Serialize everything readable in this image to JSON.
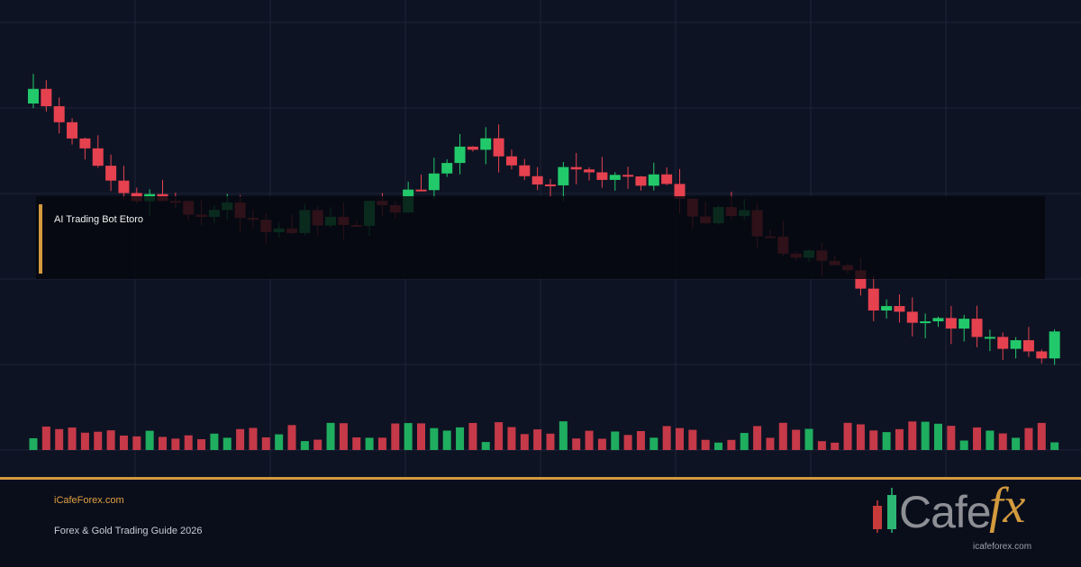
{
  "banner": {
    "label": "AI Trading Bot Etoro"
  },
  "footer": {
    "site": "iCafeForex.com",
    "subtitle": "Forex & Gold Trading Guide 2026"
  },
  "logo": {
    "word": "Cafe",
    "accent": "fx",
    "url": "icafeforex.com"
  }
}
